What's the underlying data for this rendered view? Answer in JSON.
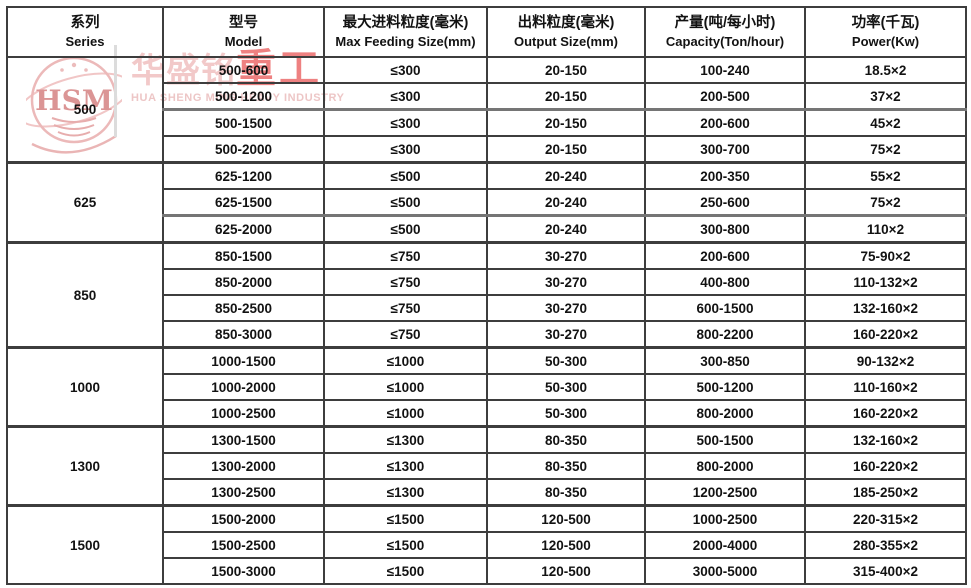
{
  "brand": {
    "logo_monogram": "HSM",
    "wordmark_cn_light": "华盛铭",
    "wordmark_cn_red": "重工",
    "wordmark_en": "HUA SHENG MING HEAVY INDUSTRY"
  },
  "colors": {
    "table_border": "#3d3d3d",
    "heavy_line_gray": "#757575",
    "text": "#121212",
    "watermark_pink": "#f2c9c9",
    "watermark_red": "#ee8181",
    "watermark_divider_gray": "#dcdcdc"
  },
  "table": {
    "columns": [
      {
        "cn": "系列",
        "en": "Series"
      },
      {
        "cn": "型号",
        "en": "Model"
      },
      {
        "cn": "最大进料粒度(毫米)",
        "en": "Max Feeding Size(mm)"
      },
      {
        "cn": "出料粒度(毫米)",
        "en": "Output Size(mm)"
      },
      {
        "cn": "产量(吨/每小时)",
        "en": "Capacity(Ton/hour)"
      },
      {
        "cn": "功率(千瓦)",
        "en": "Power(Kw)"
      }
    ],
    "groups": [
      {
        "series": "500",
        "rows": [
          [
            "500-600",
            "≤300",
            "20-150",
            "100-240",
            "18.5×2"
          ],
          [
            "500-1200",
            "≤300",
            "20-150",
            "200-500",
            "37×2"
          ],
          [
            "500-1500",
            "≤300",
            "20-150",
            "200-600",
            "45×2"
          ],
          [
            "500-2000",
            "≤300",
            "20-150",
            "300-700",
            "75×2"
          ]
        ]
      },
      {
        "series": "625",
        "rows": [
          [
            "625-1200",
            "≤500",
            "20-240",
            "200-350",
            "55×2"
          ],
          [
            "625-1500",
            "≤500",
            "20-240",
            "250-600",
            "75×2"
          ],
          [
            "625-2000",
            "≤500",
            "20-240",
            "300-800",
            "110×2"
          ]
        ]
      },
      {
        "series": "850",
        "rows": [
          [
            "850-1500",
            "≤750",
            "30-270",
            "200-600",
            "75-90×2"
          ],
          [
            "850-2000",
            "≤750",
            "30-270",
            "400-800",
            "110-132×2"
          ],
          [
            "850-2500",
            "≤750",
            "30-270",
            "600-1500",
            "132-160×2"
          ],
          [
            "850-3000",
            "≤750",
            "30-270",
            "800-2200",
            "160-220×2"
          ]
        ]
      },
      {
        "series": "1000",
        "rows": [
          [
            "1000-1500",
            "≤1000",
            "50-300",
            "300-850",
            "90-132×2"
          ],
          [
            "1000-2000",
            "≤1000",
            "50-300",
            "500-1200",
            "110-160×2"
          ],
          [
            "1000-2500",
            "≤1000",
            "50-300",
            "800-2000",
            "160-220×2"
          ]
        ]
      },
      {
        "series": "1300",
        "rows": [
          [
            "1300-1500",
            "≤1300",
            "80-350",
            "500-1500",
            "132-160×2"
          ],
          [
            "1300-2000",
            "≤1300",
            "80-350",
            "800-2000",
            "160-220×2"
          ],
          [
            "1300-2500",
            "≤1300",
            "80-350",
            "1200-2500",
            "185-250×2"
          ]
        ]
      },
      {
        "series": "1500",
        "rows": [
          [
            "1500-2000",
            "≤1500",
            "120-500",
            "1000-2500",
            "220-315×2"
          ],
          [
            "1500-2500",
            "≤1500",
            "120-500",
            "2000-4000",
            "280-355×2"
          ],
          [
            "1500-3000",
            "≤1500",
            "120-500",
            "3000-5000",
            "315-400×2"
          ]
        ]
      }
    ],
    "gray_thick_after_models": [
      "500-1200",
      "625-1500"
    ]
  }
}
